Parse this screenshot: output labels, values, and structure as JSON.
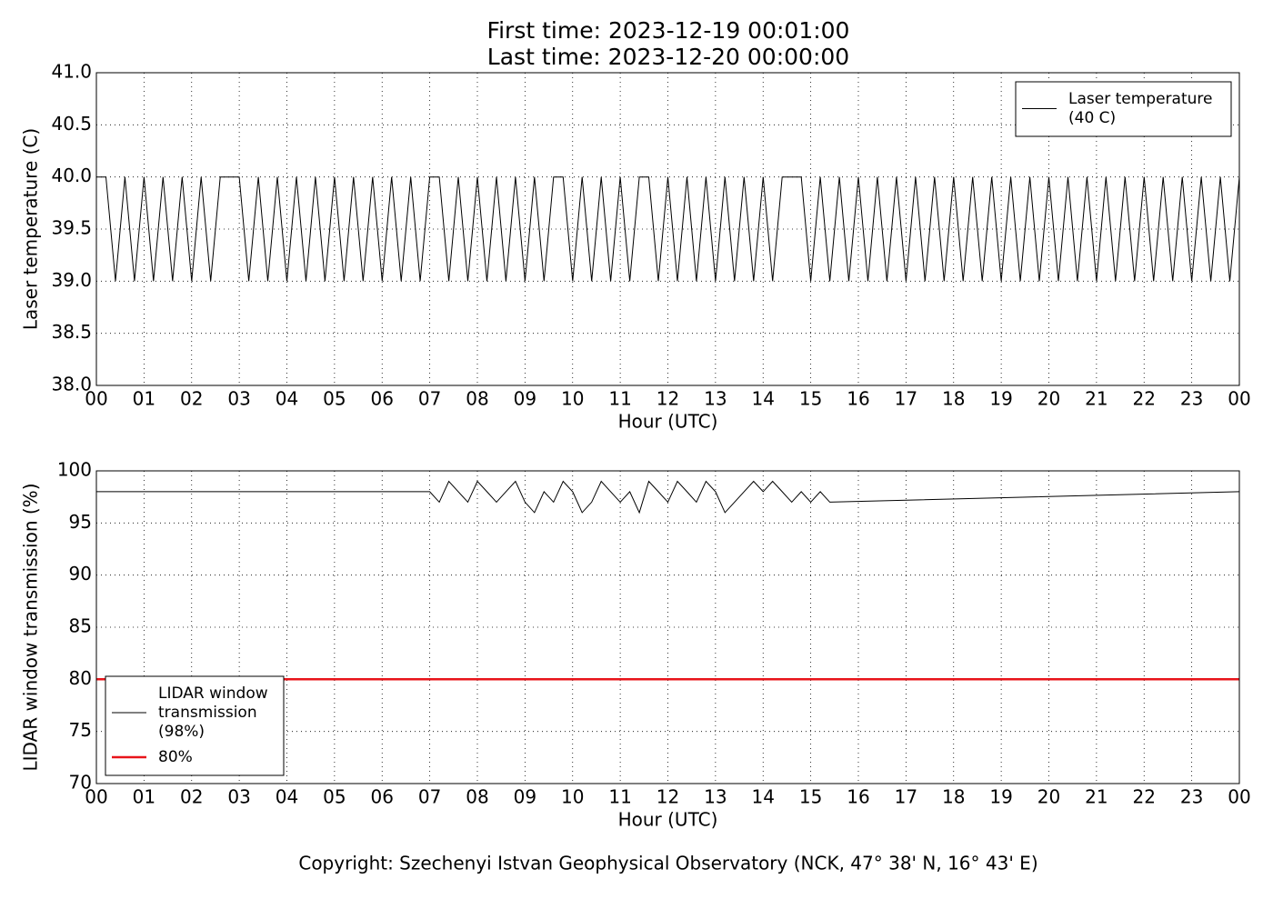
{
  "chart_data": [
    {
      "type": "line",
      "title": [
        "First time: 2023-12-19 00:01:00",
        "Last time: 2023-12-20 00:00:00"
      ],
      "xlabel": "Hour (UTC)",
      "ylabel": "Laser temperature (C)",
      "x": [
        0,
        0.2,
        0.4,
        0.6,
        0.8,
        1,
        1.2,
        1.4,
        1.6,
        1.8,
        2,
        2.2,
        2.4,
        2.6,
        2.8,
        3,
        3.2,
        3.4,
        3.6,
        3.8,
        4,
        4.2,
        4.4,
        4.6,
        4.8,
        5,
        5.2,
        5.4,
        5.6,
        5.8,
        6,
        6.2,
        6.4,
        6.6,
        6.8,
        7,
        7.2,
        7.4,
        7.6,
        7.8,
        8,
        8.2,
        8.4,
        8.6,
        8.8,
        9,
        9.2,
        9.4,
        9.6,
        9.8,
        10,
        10.2,
        10.4,
        10.6,
        10.8,
        11,
        11.2,
        11.4,
        11.6,
        11.8,
        12,
        12.2,
        12.4,
        12.6,
        12.8,
        13,
        13.2,
        13.4,
        13.6,
        13.8,
        14,
        14.2,
        14.4,
        14.6,
        14.8,
        15,
        15.2,
        15.4,
        15.6,
        15.8,
        16,
        16.2,
        16.4,
        16.6,
        16.8,
        17,
        17.2,
        17.4,
        17.6,
        17.8,
        18,
        18.2,
        18.4,
        18.6,
        18.8,
        19,
        19.2,
        19.4,
        19.6,
        19.8,
        20,
        20.2,
        20.4,
        20.6,
        20.8,
        21,
        21.2,
        21.4,
        21.6,
        21.8,
        22,
        22.2,
        22.4,
        22.6,
        22.8,
        23,
        23.2,
        23.4,
        23.6,
        23.8,
        24
      ],
      "series": [
        {
          "name": [
            "Laser temperature",
            "(40 C)"
          ],
          "color": "#000000",
          "width": 1,
          "values": [
            40,
            40,
            39,
            40,
            39,
            40,
            39,
            40,
            39,
            40,
            39,
            40,
            39,
            40,
            40,
            40,
            39,
            40,
            39,
            40,
            39,
            40,
            39,
            40,
            39,
            40,
            39,
            40,
            39,
            40,
            39,
            40,
            39,
            40,
            39,
            40,
            40,
            39,
            40,
            39,
            40,
            39,
            40,
            39,
            40,
            39,
            40,
            39,
            40,
            40,
            39,
            40,
            39,
            40,
            39,
            40,
            39,
            40,
            40,
            39,
            40,
            39,
            40,
            39,
            40,
            39,
            40,
            39,
            40,
            39,
            40,
            39,
            40,
            40,
            40,
            39,
            40,
            39,
            40,
            39,
            40,
            39,
            40,
            39,
            40,
            39,
            40,
            39,
            40,
            39,
            40,
            39,
            40,
            39,
            40,
            39,
            40,
            39,
            40,
            39,
            40,
            39,
            40,
            39,
            40,
            39,
            40,
            39,
            40,
            39,
            40,
            39,
            40,
            39,
            40,
            39,
            40,
            39,
            40,
            39,
            40
          ]
        }
      ],
      "xlim": [
        0,
        24
      ],
      "xticks": [
        {
          "value": 0,
          "label": "00"
        },
        {
          "value": 1,
          "label": "01"
        },
        {
          "value": 2,
          "label": "02"
        },
        {
          "value": 3,
          "label": "03"
        },
        {
          "value": 4,
          "label": "04"
        },
        {
          "value": 5,
          "label": "05"
        },
        {
          "value": 6,
          "label": "06"
        },
        {
          "value": 7,
          "label": "07"
        },
        {
          "value": 8,
          "label": "08"
        },
        {
          "value": 9,
          "label": "09"
        },
        {
          "value": 10,
          "label": "10"
        },
        {
          "value": 11,
          "label": "11"
        },
        {
          "value": 12,
          "label": "12"
        },
        {
          "value": 13,
          "label": "13"
        },
        {
          "value": 14,
          "label": "14"
        },
        {
          "value": 15,
          "label": "15"
        },
        {
          "value": 16,
          "label": "16"
        },
        {
          "value": 17,
          "label": "17"
        },
        {
          "value": 18,
          "label": "18"
        },
        {
          "value": 19,
          "label": "19"
        },
        {
          "value": 20,
          "label": "20"
        },
        {
          "value": 21,
          "label": "21"
        },
        {
          "value": 22,
          "label": "22"
        },
        {
          "value": 23,
          "label": "23"
        },
        {
          "value": 24,
          "label": "00"
        }
      ],
      "ylim": [
        38,
        41
      ],
      "yticks": [
        {
          "value": 38,
          "label": "38.0"
        },
        {
          "value": 38.5,
          "label": "38.5"
        },
        {
          "value": 39,
          "label": "39.0"
        },
        {
          "value": 39.5,
          "label": "39.5"
        },
        {
          "value": 40,
          "label": "40.0"
        },
        {
          "value": 40.5,
          "label": "40.5"
        },
        {
          "value": 41,
          "label": "41.0"
        }
      ],
      "grid": true,
      "legend": "upper-right"
    },
    {
      "type": "line",
      "xlabel": "Hour (UTC)",
      "ylabel": "LIDAR window transmission (%)",
      "x": [
        0,
        7,
        7.2,
        7.4,
        7.6,
        7.8,
        8,
        8.2,
        8.4,
        8.6,
        8.8,
        9,
        9.2,
        9.4,
        9.6,
        9.8,
        10,
        10.2,
        10.4,
        10.6,
        10.8,
        11,
        11.2,
        11.4,
        11.6,
        11.8,
        12,
        12.2,
        12.4,
        12.6,
        12.8,
        13,
        13.2,
        13.4,
        13.6,
        13.8,
        14,
        14.2,
        14.4,
        14.6,
        14.8,
        15,
        15.2,
        15.4,
        24
      ],
      "series": [
        {
          "name": [
            "LIDAR window",
            "transmission",
            "(98%)"
          ],
          "color": "#000000",
          "width": 1,
          "values": [
            98,
            98,
            97,
            99,
            98,
            97,
            99,
            98,
            97,
            98,
            99,
            97,
            96,
            98,
            97,
            99,
            98,
            96,
            97,
            99,
            98,
            97,
            98,
            96,
            99,
            98,
            97,
            99,
            98,
            97,
            99,
            98,
            96,
            97,
            98,
            99,
            98,
            99,
            98,
            97,
            98,
            97,
            98,
            97,
            98
          ]
        },
        {
          "name": [
            "80%"
          ],
          "color": "#e8141a",
          "width": 2.5,
          "x": [
            0,
            24
          ],
          "values": [
            80,
            80
          ]
        }
      ],
      "xlim": [
        0,
        24
      ],
      "xticks": [
        {
          "value": 0,
          "label": "00"
        },
        {
          "value": 1,
          "label": "01"
        },
        {
          "value": 2,
          "label": "02"
        },
        {
          "value": 3,
          "label": "03"
        },
        {
          "value": 4,
          "label": "04"
        },
        {
          "value": 5,
          "label": "05"
        },
        {
          "value": 6,
          "label": "06"
        },
        {
          "value": 7,
          "label": "07"
        },
        {
          "value": 8,
          "label": "08"
        },
        {
          "value": 9,
          "label": "09"
        },
        {
          "value": 10,
          "label": "10"
        },
        {
          "value": 11,
          "label": "11"
        },
        {
          "value": 12,
          "label": "12"
        },
        {
          "value": 13,
          "label": "13"
        },
        {
          "value": 14,
          "label": "14"
        },
        {
          "value": 15,
          "label": "15"
        },
        {
          "value": 16,
          "label": "16"
        },
        {
          "value": 17,
          "label": "17"
        },
        {
          "value": 18,
          "label": "18"
        },
        {
          "value": 19,
          "label": "19"
        },
        {
          "value": 20,
          "label": "20"
        },
        {
          "value": 21,
          "label": "21"
        },
        {
          "value": 22,
          "label": "22"
        },
        {
          "value": 23,
          "label": "23"
        },
        {
          "value": 24,
          "label": "00"
        }
      ],
      "ylim": [
        70,
        100
      ],
      "yticks": [
        70,
        75,
        80,
        85,
        90,
        95,
        100
      ],
      "grid": true,
      "legend": "lower-left"
    }
  ],
  "footer": "Copyright: Szechenyi Istvan Geophysical Observatory (NCK, 47° 38' N, 16° 43' E)"
}
